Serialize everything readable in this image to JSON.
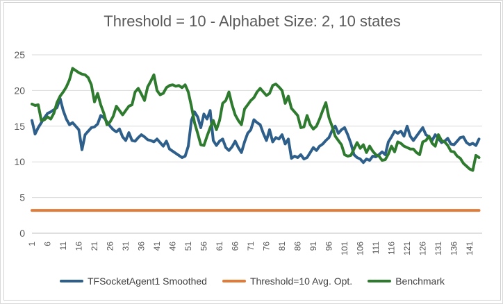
{
  "chart_data": {
    "type": "line",
    "title": "Threshold = 10 - Alphabet Size: 2, 10 states",
    "xlabel": "",
    "ylabel": "",
    "ylim": [
      0,
      25
    ],
    "yticks": [
      0,
      5,
      10,
      15,
      20,
      25
    ],
    "xlim": [
      1,
      145
    ],
    "xtick_labels": [
      1,
      6,
      11,
      16,
      21,
      26,
      31,
      36,
      41,
      46,
      51,
      56,
      61,
      66,
      71,
      76,
      81,
      86,
      91,
      96,
      101,
      106,
      111,
      116,
      121,
      126,
      131,
      136,
      141
    ],
    "grid": "horizontal",
    "legend_position": "bottom",
    "series": [
      {
        "name": "TFSocketAgent1 Smoothed",
        "color": "#2e5f8a",
        "points": [
          [
            1,
            15.8
          ],
          [
            2,
            13.9
          ],
          [
            3,
            14.8
          ],
          [
            4,
            15.5
          ],
          [
            5,
            16.2
          ],
          [
            6,
            16.8
          ],
          [
            7,
            17.0
          ],
          [
            8,
            17.3
          ],
          [
            9,
            17.6
          ],
          [
            10,
            18.9
          ],
          [
            11,
            17.2
          ],
          [
            12,
            16.0
          ],
          [
            13,
            15.2
          ],
          [
            14,
            15.5
          ],
          [
            15,
            15.0
          ],
          [
            16,
            14.5
          ],
          [
            17,
            11.7
          ],
          [
            18,
            13.8
          ],
          [
            19,
            14.3
          ],
          [
            20,
            14.8
          ],
          [
            21,
            14.9
          ],
          [
            22,
            15.3
          ],
          [
            23,
            16.5
          ],
          [
            24,
            16.2
          ],
          [
            25,
            15.6
          ],
          [
            26,
            15.0
          ],
          [
            27,
            14.5
          ],
          [
            28,
            14.2
          ],
          [
            29,
            14.6
          ],
          [
            30,
            13.5
          ],
          [
            31,
            13.0
          ],
          [
            32,
            14.1
          ],
          [
            33,
            13.0
          ],
          [
            34,
            12.9
          ],
          [
            35,
            13.4
          ],
          [
            36,
            13.8
          ],
          [
            37,
            13.5
          ],
          [
            38,
            13.1
          ],
          [
            39,
            13.0
          ],
          [
            40,
            12.8
          ],
          [
            41,
            13.2
          ],
          [
            42,
            12.7
          ],
          [
            43,
            12.2
          ],
          [
            44,
            12.9
          ],
          [
            45,
            11.8
          ],
          [
            46,
            11.5
          ],
          [
            47,
            11.2
          ],
          [
            48,
            10.9
          ],
          [
            49,
            10.6
          ],
          [
            50,
            10.8
          ],
          [
            51,
            12.2
          ],
          [
            52,
            15.8
          ],
          [
            53,
            17.0
          ],
          [
            54,
            16.3
          ],
          [
            55,
            14.8
          ],
          [
            56,
            16.7
          ],
          [
            57,
            16.0
          ],
          [
            58,
            17.2
          ],
          [
            59,
            13.0
          ],
          [
            60,
            12.3
          ],
          [
            61,
            12.9
          ],
          [
            62,
            13.2
          ],
          [
            63,
            12.0
          ],
          [
            64,
            11.6
          ],
          [
            65,
            12.1
          ],
          [
            66,
            12.9
          ],
          [
            67,
            12.0
          ],
          [
            68,
            11.3
          ],
          [
            69,
            12.8
          ],
          [
            70,
            14.0
          ],
          [
            71,
            14.5
          ],
          [
            72,
            15.9
          ],
          [
            73,
            15.5
          ],
          [
            74,
            15.2
          ],
          [
            75,
            14.0
          ],
          [
            76,
            13.0
          ],
          [
            77,
            14.5
          ],
          [
            78,
            12.8
          ],
          [
            79,
            13.4
          ],
          [
            80,
            13.2
          ],
          [
            81,
            13.8
          ],
          [
            82,
            12.5
          ],
          [
            83,
            13.2
          ],
          [
            84,
            10.5
          ],
          [
            85,
            10.8
          ],
          [
            86,
            10.6
          ],
          [
            87,
            11.0
          ],
          [
            88,
            10.4
          ],
          [
            89,
            10.6
          ],
          [
            90,
            11.3
          ],
          [
            91,
            12.0
          ],
          [
            92,
            11.6
          ],
          [
            93,
            12.2
          ],
          [
            94,
            12.5
          ],
          [
            95,
            13.0
          ],
          [
            96,
            13.4
          ],
          [
            97,
            14.4
          ],
          [
            98,
            15.0
          ],
          [
            99,
            14.0
          ],
          [
            100,
            14.5
          ],
          [
            101,
            14.8
          ],
          [
            102,
            13.8
          ],
          [
            103,
            12.6
          ],
          [
            104,
            11.0
          ],
          [
            105,
            10.6
          ],
          [
            106,
            10.4
          ],
          [
            107,
            9.9
          ],
          [
            108,
            10.4
          ],
          [
            109,
            10.2
          ],
          [
            110,
            10.8
          ],
          [
            111,
            10.7
          ],
          [
            112,
            11.0
          ],
          [
            113,
            11.4
          ],
          [
            114,
            11.0
          ],
          [
            115,
            12.8
          ],
          [
            116,
            13.5
          ],
          [
            117,
            14.3
          ],
          [
            118,
            14.0
          ],
          [
            119,
            14.3
          ],
          [
            120,
            13.6
          ],
          [
            121,
            15.0
          ],
          [
            122,
            13.6
          ],
          [
            123,
            13.0
          ],
          [
            124,
            13.6
          ],
          [
            125,
            14.2
          ],
          [
            126,
            14.8
          ],
          [
            127,
            13.8
          ],
          [
            128,
            13.5
          ],
          [
            129,
            13.0
          ],
          [
            130,
            13.8
          ],
          [
            131,
            13.3
          ],
          [
            132,
            12.7
          ],
          [
            133,
            12.9
          ],
          [
            134,
            13.3
          ],
          [
            135,
            12.5
          ],
          [
            136,
            12.4
          ],
          [
            137,
            12.9
          ],
          [
            138,
            13.4
          ],
          [
            139,
            13.5
          ],
          [
            140,
            12.7
          ],
          [
            141,
            12.4
          ],
          [
            142,
            12.6
          ],
          [
            143,
            12.3
          ],
          [
            144,
            13.2
          ]
        ]
      },
      {
        "name": "Threshold=10 Avg. Opt.",
        "color": "#e07b39",
        "points": [
          [
            1,
            3.2
          ],
          [
            144,
            3.2
          ]
        ]
      },
      {
        "name": "Benchmark",
        "color": "#2e7a2e",
        "points": [
          [
            1,
            18.1
          ],
          [
            2,
            17.9
          ],
          [
            3,
            18.0
          ],
          [
            4,
            15.8
          ],
          [
            5,
            15.9
          ],
          [
            6,
            16.3
          ],
          [
            7,
            16.0
          ],
          [
            8,
            16.8
          ],
          [
            9,
            18.3
          ],
          [
            10,
            19.2
          ],
          [
            11,
            19.8
          ],
          [
            12,
            20.5
          ],
          [
            13,
            21.5
          ],
          [
            14,
            23.1
          ],
          [
            15,
            22.8
          ],
          [
            16,
            22.5
          ],
          [
            17,
            22.3
          ],
          [
            18,
            22.2
          ],
          [
            19,
            21.8
          ],
          [
            20,
            20.8
          ],
          [
            21,
            18.4
          ],
          [
            22,
            19.6
          ],
          [
            23,
            18.0
          ],
          [
            24,
            16.8
          ],
          [
            25,
            15.2
          ],
          [
            26,
            15.6
          ],
          [
            27,
            16.4
          ],
          [
            28,
            17.8
          ],
          [
            29,
            17.2
          ],
          [
            30,
            16.6
          ],
          [
            31,
            17.2
          ],
          [
            32,
            17.8
          ],
          [
            33,
            18.0
          ],
          [
            34,
            19.8
          ],
          [
            35,
            20.3
          ],
          [
            36,
            19.5
          ],
          [
            37,
            18.6
          ],
          [
            38,
            20.5
          ],
          [
            39,
            21.3
          ],
          [
            40,
            22.2
          ],
          [
            41,
            20.0
          ],
          [
            42,
            19.4
          ],
          [
            43,
            19.6
          ],
          [
            44,
            20.4
          ],
          [
            45,
            20.7
          ],
          [
            46,
            20.8
          ],
          [
            47,
            20.6
          ],
          [
            48,
            20.7
          ],
          [
            49,
            20.4
          ],
          [
            50,
            20.8
          ],
          [
            51,
            19.8
          ],
          [
            52,
            17.8
          ],
          [
            53,
            15.5
          ],
          [
            54,
            14.0
          ],
          [
            55,
            12.4
          ],
          [
            56,
            12.3
          ],
          [
            57,
            13.6
          ],
          [
            58,
            14.8
          ],
          [
            59,
            15.8
          ],
          [
            60,
            14.5
          ],
          [
            61,
            15.8
          ],
          [
            62,
            18.2
          ],
          [
            63,
            18.6
          ],
          [
            64,
            19.8
          ],
          [
            65,
            18.0
          ],
          [
            66,
            16.6
          ],
          [
            67,
            15.8
          ],
          [
            68,
            15.2
          ],
          [
            69,
            17.4
          ],
          [
            70,
            18.0
          ],
          [
            71,
            18.6
          ],
          [
            72,
            19.0
          ],
          [
            73,
            19.8
          ],
          [
            74,
            20.3
          ],
          [
            75,
            19.8
          ],
          [
            76,
            19.3
          ],
          [
            77,
            19.6
          ],
          [
            78,
            20.7
          ],
          [
            79,
            20.9
          ],
          [
            80,
            20.5
          ],
          [
            81,
            20.0
          ],
          [
            82,
            18.2
          ],
          [
            83,
            19.2
          ],
          [
            84,
            17.5
          ],
          [
            85,
            17.0
          ],
          [
            86,
            16.5
          ],
          [
            87,
            14.8
          ],
          [
            88,
            14.9
          ],
          [
            89,
            16.5
          ],
          [
            90,
            15.2
          ],
          [
            91,
            14.6
          ],
          [
            92,
            15.0
          ],
          [
            93,
            16.0
          ],
          [
            94,
            17.2
          ],
          [
            95,
            18.3
          ],
          [
            96,
            16.2
          ],
          [
            97,
            15.0
          ],
          [
            98,
            13.6
          ],
          [
            99,
            13.0
          ],
          [
            100,
            12.4
          ],
          [
            101,
            11.0
          ],
          [
            102,
            10.8
          ],
          [
            103,
            10.9
          ],
          [
            104,
            11.8
          ],
          [
            105,
            12.7
          ],
          [
            106,
            11.9
          ],
          [
            107,
            12.4
          ],
          [
            108,
            11.3
          ],
          [
            109,
            12.2
          ],
          [
            110,
            11.5
          ],
          [
            111,
            11.0
          ],
          [
            112,
            10.8
          ],
          [
            113,
            10.2
          ],
          [
            114,
            10.3
          ],
          [
            115,
            11.1
          ],
          [
            116,
            12.2
          ],
          [
            117,
            11.4
          ],
          [
            118,
            12.8
          ],
          [
            119,
            12.6
          ],
          [
            120,
            12.2
          ],
          [
            121,
            12.0
          ],
          [
            122,
            11.8
          ],
          [
            123,
            11.8
          ],
          [
            124,
            11.3
          ],
          [
            125,
            11.0
          ],
          [
            126,
            12.8
          ],
          [
            127,
            13.0
          ],
          [
            128,
            13.6
          ],
          [
            129,
            12.6
          ],
          [
            130,
            12.2
          ],
          [
            131,
            13.8
          ],
          [
            132,
            13.0
          ],
          [
            133,
            12.8
          ],
          [
            134,
            12.3
          ],
          [
            135,
            11.5
          ],
          [
            136,
            11.4
          ],
          [
            137,
            10.8
          ],
          [
            138,
            10.5
          ],
          [
            139,
            9.8
          ],
          [
            140,
            9.4
          ],
          [
            141,
            9.0
          ],
          [
            142,
            8.8
          ],
          [
            143,
            10.9
          ],
          [
            144,
            10.6
          ]
        ]
      }
    ]
  }
}
